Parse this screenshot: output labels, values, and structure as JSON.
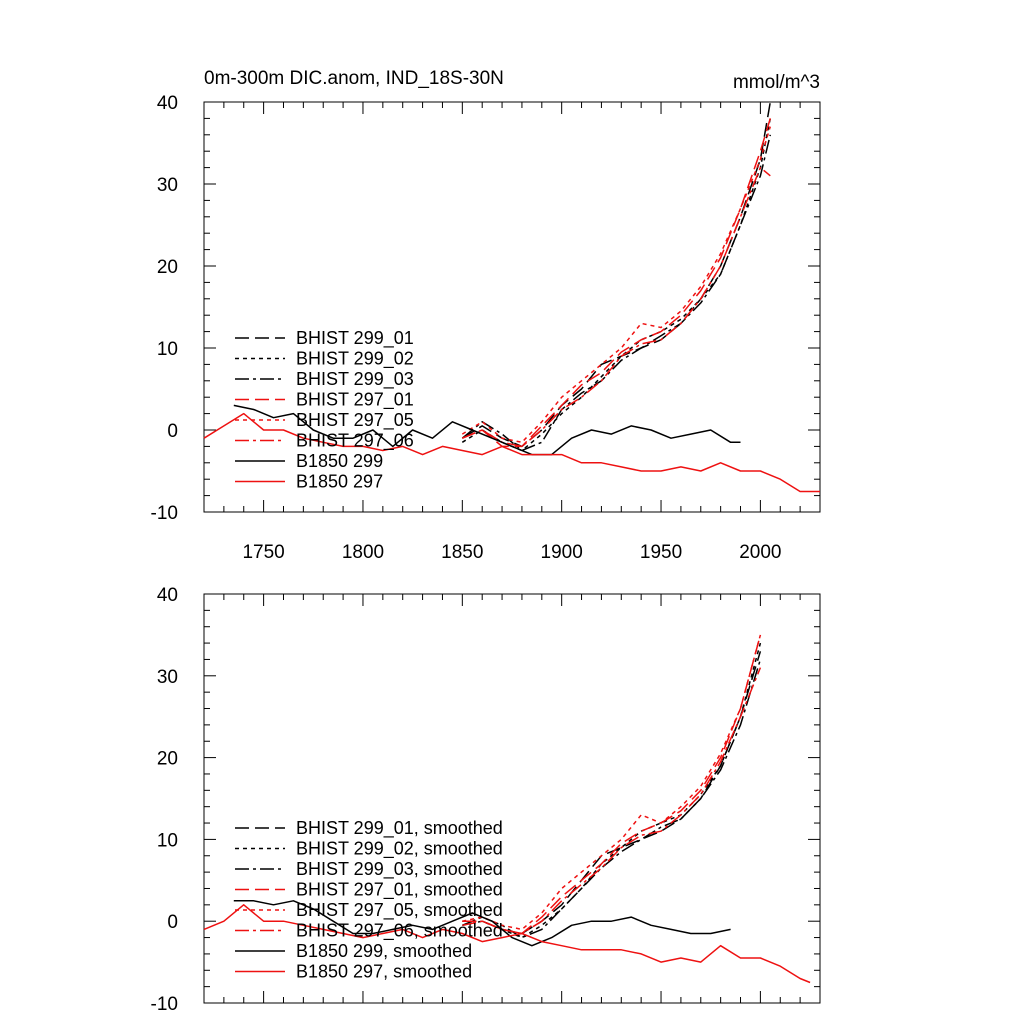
{
  "figure": {
    "title": "0m-300m DIC.anom, IND_18S-30N",
    "units": "mmol/m^3"
  },
  "colors": {
    "black": "#000000",
    "red": "#ee1111"
  },
  "chart_data": [
    {
      "type": "line",
      "panel": "top",
      "title": "0m-300m DIC.anom, IND_18S-30N",
      "units_label": "mmol/m^3",
      "xlabel": "",
      "ylabel": "",
      "xlim": [
        1720,
        2030
      ],
      "ylim": [
        -10,
        40
      ],
      "x_ticks": [
        1750,
        1800,
        1850,
        1900,
        1950,
        2000
      ],
      "x_tick_labels": [
        "1750",
        "1800",
        "1850",
        "1900",
        "1950",
        "2000"
      ],
      "y_ticks": [
        -10,
        0,
        10,
        20,
        30,
        40
      ],
      "y_tick_labels": [
        "-10",
        "0",
        "10",
        "20",
        "30",
        "40"
      ],
      "legend_position": "left-middle",
      "series": [
        {
          "name": "BHIST 299_01",
          "color": "#000000",
          "dash": "dash",
          "x": [
            1850,
            1860,
            1870,
            1880,
            1890,
            1900,
            1910,
            1920,
            1930,
            1940,
            1950,
            1960,
            1970,
            1980,
            1990,
            2000,
            2005
          ],
          "y": [
            -1,
            0.5,
            -1,
            -2,
            0,
            3,
            5,
            8,
            9,
            10,
            11,
            13,
            16,
            20,
            26,
            33,
            40
          ]
        },
        {
          "name": "BHIST 299_02",
          "color": "#000000",
          "dash": "dot",
          "x": [
            1850,
            1860,
            1870,
            1880,
            1890,
            1900,
            1910,
            1920,
            1930,
            1940,
            1950,
            1960,
            1970,
            1980,
            1990,
            2000,
            2005
          ],
          "y": [
            -1.5,
            0,
            -1.5,
            -2.5,
            -0.5,
            2,
            4,
            6.5,
            9,
            11,
            12,
            13.5,
            16,
            19,
            25,
            32,
            38
          ]
        },
        {
          "name": "BHIST 299_03",
          "color": "#000000",
          "dash": "dashdot",
          "x": [
            1850,
            1860,
            1870,
            1880,
            1890,
            1900,
            1910,
            1920,
            1930,
            1940,
            1950,
            1960,
            1970,
            1980,
            1990,
            2000,
            2005
          ],
          "y": [
            -1,
            1,
            -0.5,
            -2.5,
            -1.5,
            2.5,
            4.5,
            6,
            8.5,
            10,
            11.5,
            13,
            15.5,
            19,
            25,
            31,
            36
          ]
        },
        {
          "name": "BHIST 297_01",
          "color": "#ee1111",
          "dash": "dash",
          "x": [
            1850,
            1860,
            1870,
            1880,
            1890,
            1900,
            1910,
            1920,
            1930,
            1940,
            1950,
            1960,
            1970,
            1980,
            1990,
            2000,
            2005
          ],
          "y": [
            -1,
            0,
            -2,
            -2,
            0.5,
            3,
            5.5,
            7,
            9.5,
            11,
            12,
            14,
            17,
            21,
            27,
            34,
            38
          ]
        },
        {
          "name": "BHIST 297_05",
          "color": "#ee1111",
          "dash": "dot",
          "x": [
            1850,
            1860,
            1870,
            1880,
            1890,
            1900,
            1910,
            1920,
            1930,
            1940,
            1950,
            1960,
            1970,
            1980,
            1990,
            2000,
            2005
          ],
          "y": [
            -0.5,
            1,
            -1,
            -1.5,
            1,
            4,
            6,
            8,
            10,
            13,
            12.5,
            14.5,
            17.5,
            21.5,
            27,
            33,
            37
          ]
        },
        {
          "name": "BHIST 297_06",
          "color": "#ee1111",
          "dash": "dashdot",
          "x": [
            1850,
            1860,
            1870,
            1880,
            1890,
            1900,
            1910,
            1920,
            1930,
            1940,
            1950,
            1960,
            1970,
            1980,
            1990,
            2000,
            2005
          ],
          "y": [
            -1,
            0,
            -1.5,
            -2,
            0,
            2.5,
            4,
            6,
            9,
            10.5,
            11,
            13,
            16,
            20,
            26,
            32,
            31
          ]
        },
        {
          "name": "B1850 299",
          "color": "#000000",
          "dash": "solid",
          "x": [
            1735,
            1745,
            1755,
            1765,
            1775,
            1785,
            1795,
            1805,
            1815,
            1825,
            1835,
            1845,
            1855,
            1865,
            1875,
            1885,
            1895,
            1905,
            1915,
            1925,
            1935,
            1945,
            1955,
            1965,
            1975,
            1985,
            1990
          ],
          "y": [
            3,
            2.5,
            1.5,
            2,
            0,
            -1,
            -1,
            0,
            -2,
            0,
            -1,
            1,
            0,
            -1,
            -2,
            -3,
            -3,
            -1,
            0,
            -0.5,
            0.5,
            0,
            -1,
            -0.5,
            0,
            -1.5,
            -1.5
          ]
        },
        {
          "name": "B1850 297",
          "color": "#ee1111",
          "dash": "solid",
          "x": [
            1720,
            1730,
            1740,
            1750,
            1760,
            1770,
            1780,
            1790,
            1800,
            1810,
            1820,
            1830,
            1840,
            1850,
            1860,
            1870,
            1880,
            1890,
            1900,
            1910,
            1920,
            1930,
            1940,
            1950,
            1960,
            1970,
            1980,
            1990,
            2000,
            2010,
            2020,
            2030
          ],
          "y": [
            -1,
            0.5,
            2,
            0,
            0,
            -1,
            -1.5,
            -2,
            -2,
            -2.5,
            -2,
            -3,
            -2,
            -2.5,
            -3,
            -2,
            -3,
            -3,
            -3,
            -4,
            -4,
            -4.5,
            -5,
            -5,
            -4.5,
            -5,
            -4,
            -5,
            -5,
            -6,
            -7.5,
            -7.5
          ]
        }
      ]
    },
    {
      "type": "line",
      "panel": "bottom",
      "title": "",
      "xlabel": "",
      "ylabel": "",
      "xlim": [
        1720,
        2030
      ],
      "ylim": [
        -10,
        40
      ],
      "y_ticks": [
        -10,
        0,
        10,
        20,
        30,
        40
      ],
      "y_tick_labels": [
        "-10",
        "0",
        "10",
        "20",
        "30",
        "40"
      ],
      "legend_position": "left-middle",
      "series": [
        {
          "name": "BHIST 299_01, smoothed",
          "color": "#000000",
          "dash": "dash",
          "x": [
            1850,
            1860,
            1870,
            1880,
            1890,
            1900,
            1910,
            1920,
            1930,
            1940,
            1950,
            1960,
            1970,
            1980,
            1990,
            2000
          ],
          "y": [
            0,
            0,
            -1,
            -1.5,
            0,
            2,
            5,
            8,
            9,
            10,
            11,
            12.5,
            15,
            19,
            25,
            33
          ]
        },
        {
          "name": "BHIST 299_02, smoothed",
          "color": "#000000",
          "dash": "dot",
          "x": [
            1850,
            1860,
            1870,
            1880,
            1890,
            1900,
            1910,
            1920,
            1930,
            1940,
            1950,
            1960,
            1970,
            1980,
            1990,
            2000
          ],
          "y": [
            -0.5,
            0,
            -1,
            -2,
            -0.5,
            1.5,
            4,
            7,
            9,
            11,
            12,
            13,
            15.5,
            19,
            25,
            34
          ]
        },
        {
          "name": "BHIST 299_03, smoothed",
          "color": "#000000",
          "dash": "dashdot",
          "x": [
            1850,
            1860,
            1870,
            1880,
            1890,
            1900,
            1910,
            1920,
            1930,
            1940,
            1950,
            1960,
            1970,
            1980,
            1990,
            2000
          ],
          "y": [
            -0.5,
            0.5,
            -0.5,
            -2,
            -1,
            1.5,
            4,
            6.5,
            8.5,
            10,
            11.5,
            12.5,
            15,
            18.5,
            24,
            32
          ]
        },
        {
          "name": "BHIST 297_01, smoothed",
          "color": "#ee1111",
          "dash": "dash",
          "x": [
            1850,
            1860,
            1870,
            1880,
            1890,
            1900,
            1910,
            1920,
            1930,
            1940,
            1950,
            1960,
            1970,
            1980,
            1990,
            2000
          ],
          "y": [
            0,
            0,
            -1,
            -1.5,
            0.5,
            3,
            5,
            7,
            9.5,
            11,
            12,
            13.5,
            16,
            20,
            26,
            35
          ]
        },
        {
          "name": "BHIST 297_05, smoothed",
          "color": "#ee1111",
          "dash": "dot",
          "x": [
            1850,
            1860,
            1870,
            1880,
            1890,
            1900,
            1910,
            1920,
            1930,
            1940,
            1950,
            1960,
            1970,
            1980,
            1990,
            2000
          ],
          "y": [
            0,
            0.5,
            -0.5,
            -1,
            1,
            4,
            6,
            8,
            10,
            13,
            12,
            14,
            16.5,
            20.5,
            26,
            35
          ]
        },
        {
          "name": "BHIST 297_06, smoothed",
          "color": "#ee1111",
          "dash": "dashdot",
          "x": [
            1850,
            1860,
            1870,
            1880,
            1890,
            1900,
            1910,
            1920,
            1930,
            1940,
            1950,
            1960,
            1970,
            1980,
            1990,
            2000
          ],
          "y": [
            -0.5,
            0,
            -1,
            -1.5,
            0,
            2.5,
            4.5,
            6.5,
            9,
            10.5,
            11,
            13,
            15.5,
            19.5,
            25,
            31
          ]
        },
        {
          "name": "B1850 299, smoothed",
          "color": "#000000",
          "dash": "solid",
          "x": [
            1735,
            1745,
            1755,
            1765,
            1775,
            1785,
            1795,
            1805,
            1815,
            1825,
            1835,
            1845,
            1855,
            1865,
            1875,
            1885,
            1895,
            1905,
            1915,
            1925,
            1935,
            1945,
            1955,
            1965,
            1975,
            1985
          ],
          "y": [
            2.5,
            2.5,
            2,
            2.5,
            1.5,
            0,
            -1.5,
            -1.5,
            -1,
            -0.5,
            -1,
            0,
            1,
            0,
            -2,
            -3,
            -2,
            -0.5,
            0,
            0,
            0.5,
            -0.5,
            -1,
            -1.5,
            -1.5,
            -1
          ]
        },
        {
          "name": "B1850 297, smoothed",
          "color": "#ee1111",
          "dash": "solid",
          "x": [
            1720,
            1730,
            1740,
            1750,
            1760,
            1770,
            1780,
            1790,
            1800,
            1810,
            1820,
            1830,
            1840,
            1850,
            1860,
            1870,
            1880,
            1890,
            1900,
            1910,
            1920,
            1930,
            1940,
            1950,
            1960,
            1970,
            1980,
            1990,
            2000,
            2010,
            2020,
            2025
          ],
          "y": [
            -1,
            0,
            2,
            0,
            0,
            -0.5,
            -1,
            -1.5,
            -2,
            -1.5,
            -1,
            -2,
            -1,
            -1.5,
            -2.5,
            -2,
            -1.5,
            -2.5,
            -3,
            -3.5,
            -3.5,
            -3.5,
            -4,
            -5,
            -4.5,
            -5,
            -3,
            -4.5,
            -4.5,
            -5.5,
            -7,
            -7.5
          ]
        }
      ]
    }
  ]
}
